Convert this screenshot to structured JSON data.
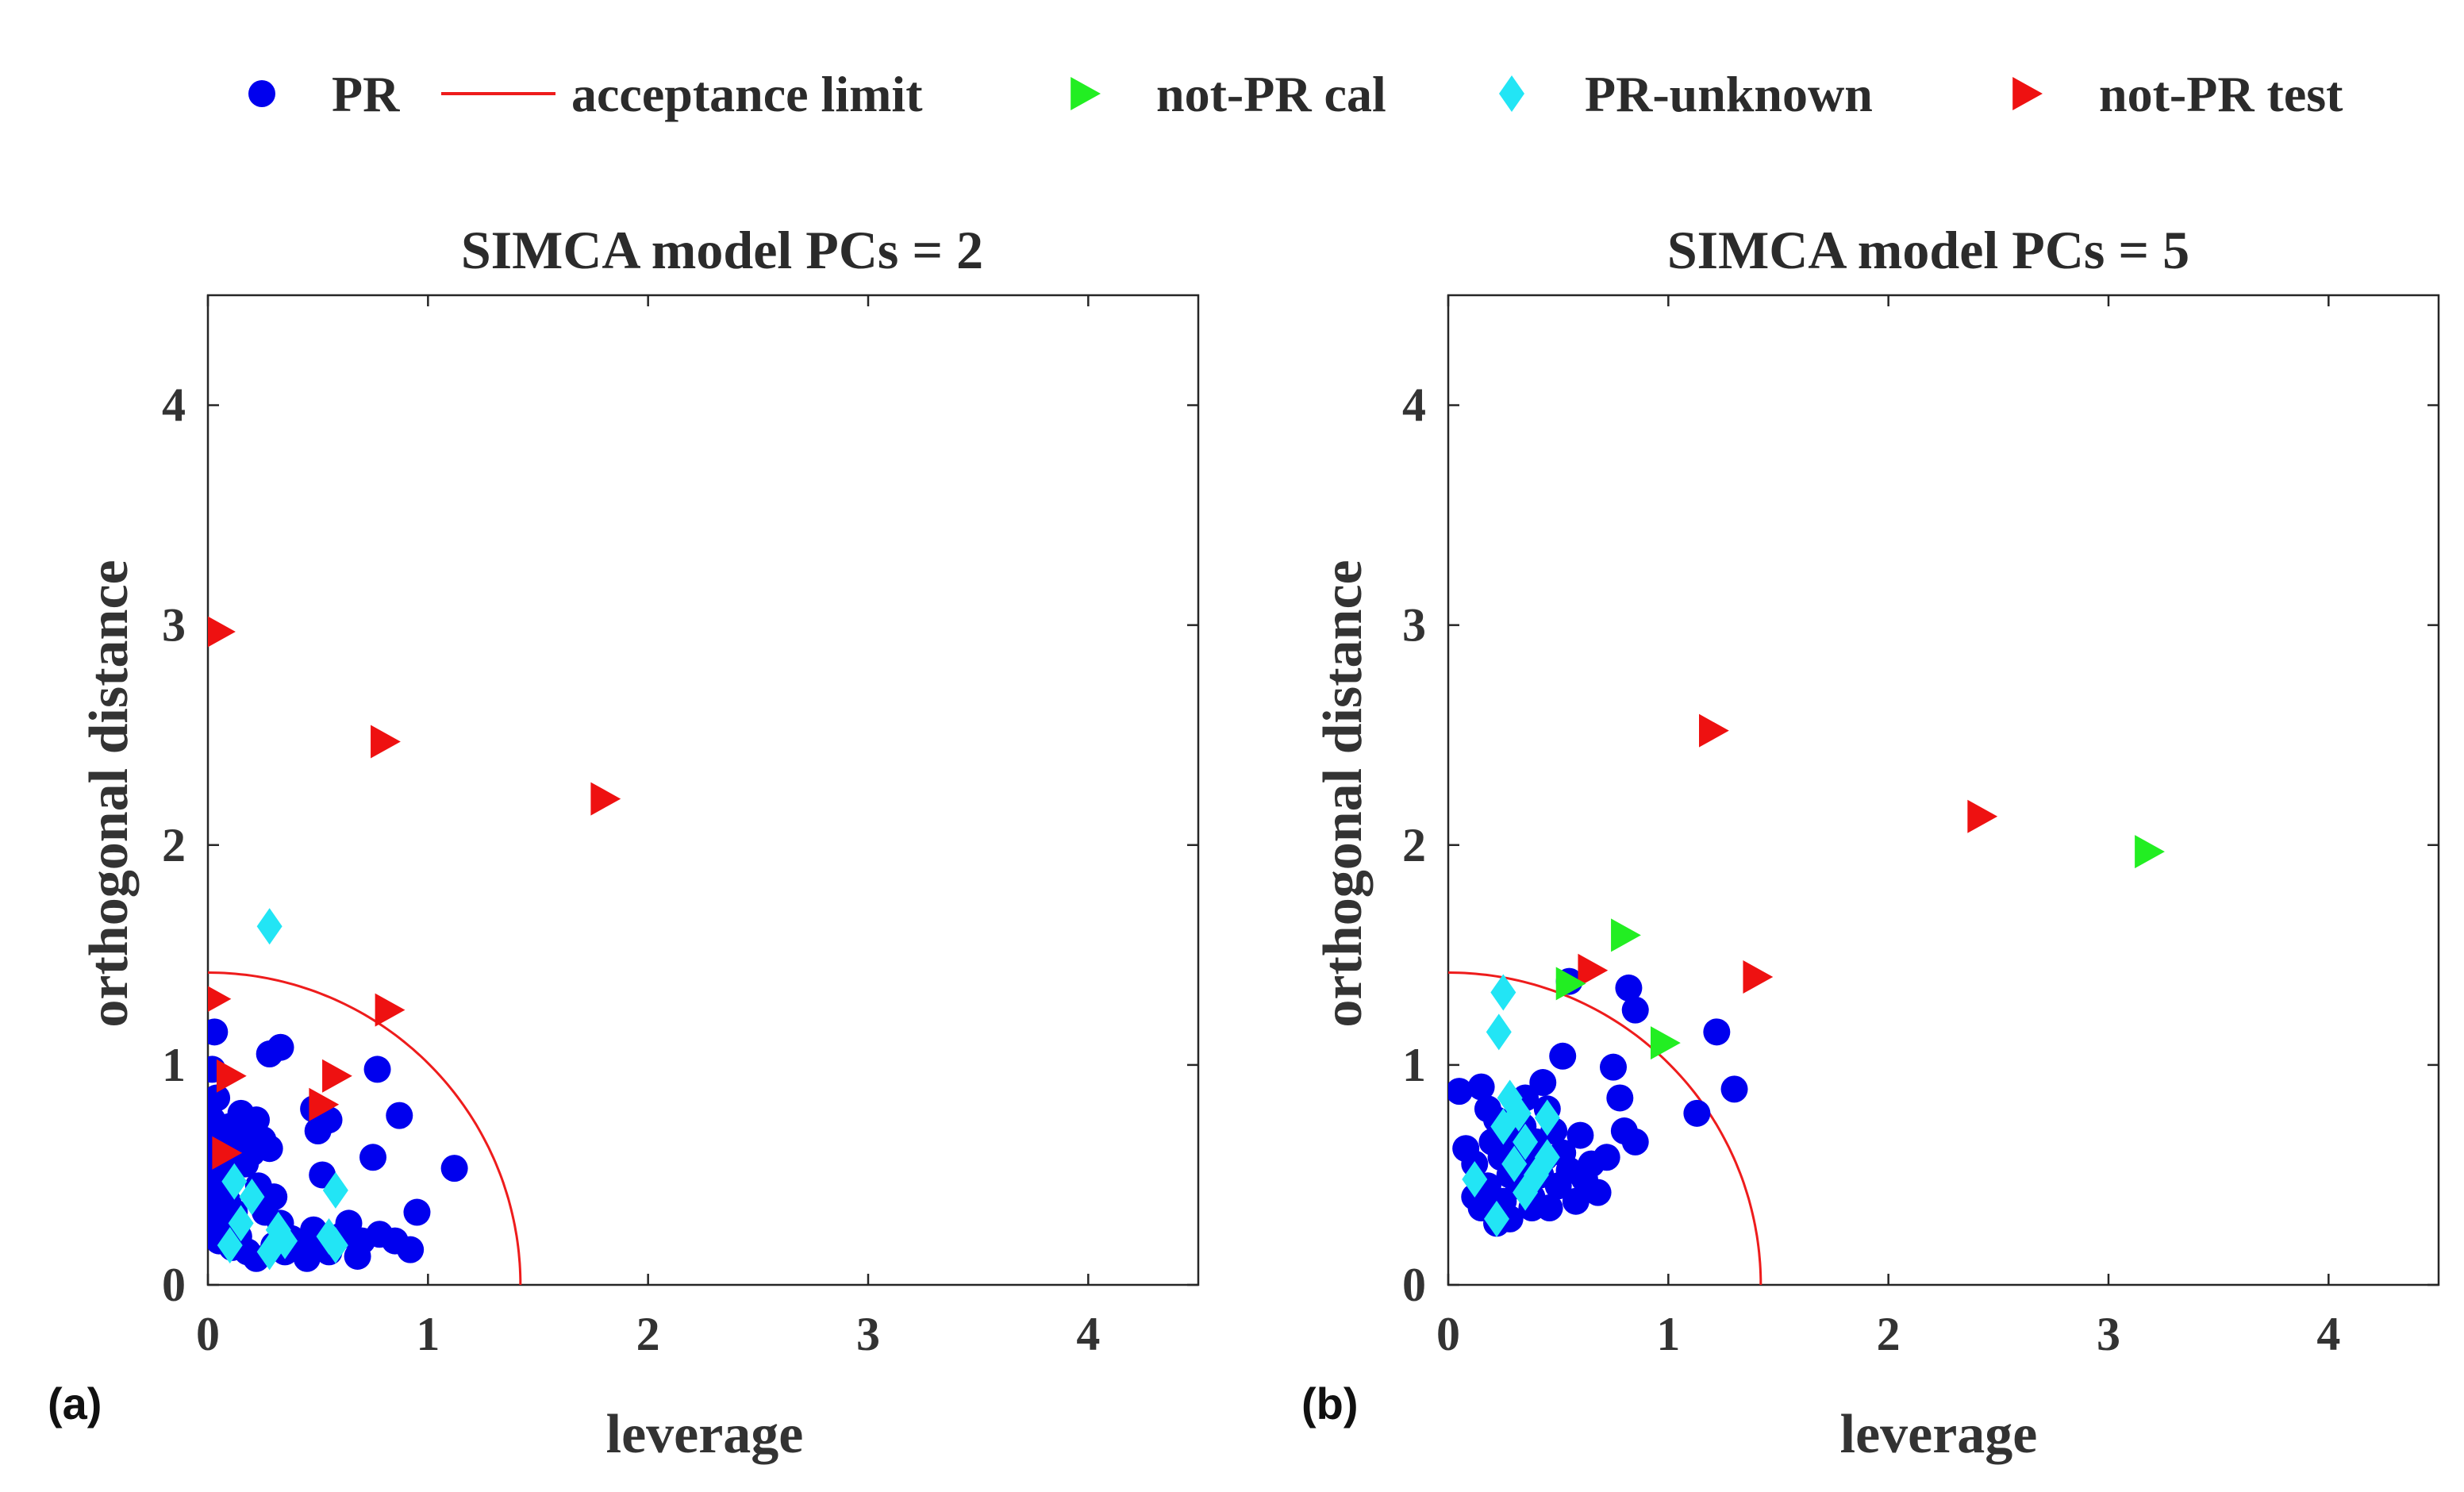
{
  "legend": {
    "items": [
      {
        "label": "PR",
        "marker": "circle",
        "color": "#0000ee"
      },
      {
        "label": "acceptance limit",
        "marker": "line",
        "color": "#ee1c1c"
      },
      {
        "label": "not-PR cal",
        "marker": "triangle-right",
        "color": "#22ee22"
      },
      {
        "label": "PR-unknown",
        "marker": "diamond",
        "color": "#22e5f5"
      },
      {
        "label": "not-PR test",
        "marker": "triangle-right",
        "color": "#ee1111"
      }
    ]
  },
  "panels": [
    {
      "label": "(a)"
    },
    {
      "label": "(b)"
    }
  ],
  "chart_data": [
    {
      "type": "scatter",
      "title": "SIMCA model PCs = 2",
      "xlabel": "leverage",
      "ylabel": "orthogonal distance",
      "xlim": [
        0,
        4.5
      ],
      "ylim": [
        0,
        4.5
      ],
      "xticks": [
        0,
        1,
        2,
        3,
        4
      ],
      "yticks": [
        0,
        1,
        2,
        3,
        4
      ],
      "acceptance_limit_radius": 1.42,
      "series": [
        {
          "name": "PR",
          "marker": "circle",
          "color": "#0000ee",
          "points": [
            [
              0.03,
              1.15
            ],
            [
              0.02,
              0.98
            ],
            [
              0.04,
              0.85
            ],
            [
              0.02,
              0.75
            ],
            [
              0.03,
              0.68
            ],
            [
              0.05,
              0.62
            ],
            [
              0.02,
              0.55
            ],
            [
              0.08,
              0.55
            ],
            [
              0.03,
              0.48
            ],
            [
              0.07,
              0.45
            ],
            [
              0.02,
              0.4
            ],
            [
              0.09,
              0.38
            ],
            [
              0.04,
              0.32
            ],
            [
              0.12,
              0.33
            ],
            [
              0.02,
              0.27
            ],
            [
              0.08,
              0.25
            ],
            [
              0.14,
              0.22
            ],
            [
              0.05,
              0.2
            ],
            [
              0.11,
              0.17
            ],
            [
              0.18,
              0.15
            ],
            [
              0.1,
              0.72
            ],
            [
              0.15,
              0.78
            ],
            [
              0.19,
              0.7
            ],
            [
              0.22,
              0.75
            ],
            [
              0.25,
              0.66
            ],
            [
              0.28,
              0.62
            ],
            [
              0.2,
              0.6
            ],
            [
              0.17,
              0.55
            ],
            [
              0.13,
              0.62
            ],
            [
              0.23,
              0.45
            ],
            [
              0.3,
              0.4
            ],
            [
              0.26,
              0.33
            ],
            [
              0.33,
              0.28
            ],
            [
              0.38,
              0.21
            ],
            [
              0.42,
              0.18
            ],
            [
              0.48,
              0.25
            ],
            [
              0.52,
              0.18
            ],
            [
              0.55,
              0.15
            ],
            [
              0.6,
              0.22
            ],
            [
              0.64,
              0.28
            ],
            [
              0.7,
              0.2
            ],
            [
              0.78,
              0.23
            ],
            [
              0.85,
              0.2
            ],
            [
              0.92,
              0.16
            ],
            [
              0.95,
              0.33
            ],
            [
              0.28,
              1.05
            ],
            [
              0.33,
              1.08
            ],
            [
              0.5,
              0.7
            ],
            [
              0.55,
              0.75
            ],
            [
              0.48,
              0.8
            ],
            [
              0.52,
              0.5
            ],
            [
              0.75,
              0.58
            ],
            [
              0.77,
              0.98
            ],
            [
              0.87,
              0.77
            ],
            [
              1.12,
              0.53
            ],
            [
              0.35,
              0.15
            ],
            [
              0.22,
              0.12
            ],
            [
              0.3,
              0.18
            ],
            [
              0.45,
              0.12
            ],
            [
              0.68,
              0.13
            ]
          ]
        },
        {
          "name": "not-PR test",
          "marker": "triangle-right",
          "color": "#ee1111",
          "points": [
            [
              0.05,
              2.97
            ],
            [
              0.8,
              2.47
            ],
            [
              1.8,
              2.21
            ],
            [
              0.03,
              1.3
            ],
            [
              0.82,
              1.25
            ],
            [
              0.1,
              0.95
            ],
            [
              0.58,
              0.95
            ],
            [
              0.52,
              0.82
            ],
            [
              0.08,
              0.6
            ]
          ]
        },
        {
          "name": "PR-unknown",
          "marker": "diamond",
          "color": "#22e5f5",
          "points": [
            [
              0.28,
              1.63
            ],
            [
              0.12,
              0.47
            ],
            [
              0.2,
              0.4
            ],
            [
              0.58,
              0.43
            ],
            [
              0.15,
              0.28
            ],
            [
              0.32,
              0.25
            ],
            [
              0.35,
              0.2
            ],
            [
              0.1,
              0.18
            ],
            [
              0.28,
              0.15
            ],
            [
              0.58,
              0.18
            ],
            [
              0.55,
              0.22
            ]
          ]
        }
      ]
    },
    {
      "type": "scatter",
      "title": "SIMCA model PCs = 5",
      "xlabel": "leverage",
      "ylabel": "orthogonal distance",
      "xlim": [
        0,
        4.5
      ],
      "ylim": [
        0,
        4.5
      ],
      "xticks": [
        0,
        1,
        2,
        3,
        4
      ],
      "yticks": [
        0,
        1,
        2,
        3,
        4
      ],
      "acceptance_limit_radius": 1.42,
      "series": [
        {
          "name": "PR",
          "marker": "circle",
          "color": "#0000ee",
          "points": [
            [
              0.05,
              0.88
            ],
            [
              0.08,
              0.62
            ],
            [
              0.12,
              0.55
            ],
            [
              0.15,
              0.9
            ],
            [
              0.18,
              0.8
            ],
            [
              0.2,
              0.65
            ],
            [
              0.22,
              0.75
            ],
            [
              0.24,
              0.58
            ],
            [
              0.26,
              0.7
            ],
            [
              0.28,
              0.5
            ],
            [
              0.3,
              0.62
            ],
            [
              0.32,
              0.45
            ],
            [
              0.34,
              0.72
            ],
            [
              0.36,
              0.55
            ],
            [
              0.38,
              0.4
            ],
            [
              0.4,
              0.65
            ],
            [
              0.42,
              0.5
            ],
            [
              0.44,
              0.58
            ],
            [
              0.46,
              0.35
            ],
            [
              0.48,
              0.7
            ],
            [
              0.5,
              0.45
            ],
            [
              0.52,
              0.6
            ],
            [
              0.55,
              0.52
            ],
            [
              0.58,
              0.38
            ],
            [
              0.6,
              0.68
            ],
            [
              0.62,
              0.48
            ],
            [
              0.65,
              0.55
            ],
            [
              0.68,
              0.42
            ],
            [
              0.72,
              0.58
            ],
            [
              0.25,
              0.38
            ],
            [
              0.18,
              0.45
            ],
            [
              0.15,
              0.35
            ],
            [
              0.22,
              0.28
            ],
            [
              0.12,
              0.4
            ],
            [
              0.35,
              0.85
            ],
            [
              0.43,
              0.92
            ],
            [
              0.52,
              1.04
            ],
            [
              0.55,
              1.38
            ],
            [
              0.75,
              0.99
            ],
            [
              0.78,
              0.85
            ],
            [
              0.82,
              1.35
            ],
            [
              0.85,
              1.25
            ],
            [
              0.8,
              0.7
            ],
            [
              0.85,
              0.65
            ],
            [
              1.13,
              0.78
            ],
            [
              1.22,
              1.15
            ],
            [
              1.3,
              0.89
            ],
            [
              0.45,
              0.8
            ],
            [
              0.38,
              0.35
            ],
            [
              0.28,
              0.3
            ]
          ]
        },
        {
          "name": "not-PR test",
          "marker": "triangle-right",
          "color": "#ee1111",
          "points": [
            [
              1.2,
              2.52
            ],
            [
              2.42,
              2.13
            ],
            [
              0.65,
              1.43
            ],
            [
              1.4,
              1.4
            ]
          ]
        },
        {
          "name": "not-PR cal",
          "marker": "triangle-right",
          "color": "#22ee22",
          "points": [
            [
              3.18,
              1.97
            ],
            [
              0.8,
              1.59
            ],
            [
              0.55,
              1.37
            ],
            [
              0.98,
              1.1
            ]
          ]
        },
        {
          "name": "PR-unknown",
          "marker": "diamond",
          "color": "#22e5f5",
          "points": [
            [
              0.25,
              1.33
            ],
            [
              0.23,
              1.15
            ],
            [
              0.28,
              0.85
            ],
            [
              0.32,
              0.78
            ],
            [
              0.25,
              0.72
            ],
            [
              0.45,
              0.76
            ],
            [
              0.35,
              0.65
            ],
            [
              0.12,
              0.48
            ],
            [
              0.3,
              0.55
            ],
            [
              0.4,
              0.5
            ],
            [
              0.45,
              0.58
            ],
            [
              0.35,
              0.42
            ],
            [
              0.22,
              0.3
            ]
          ]
        }
      ]
    }
  ]
}
